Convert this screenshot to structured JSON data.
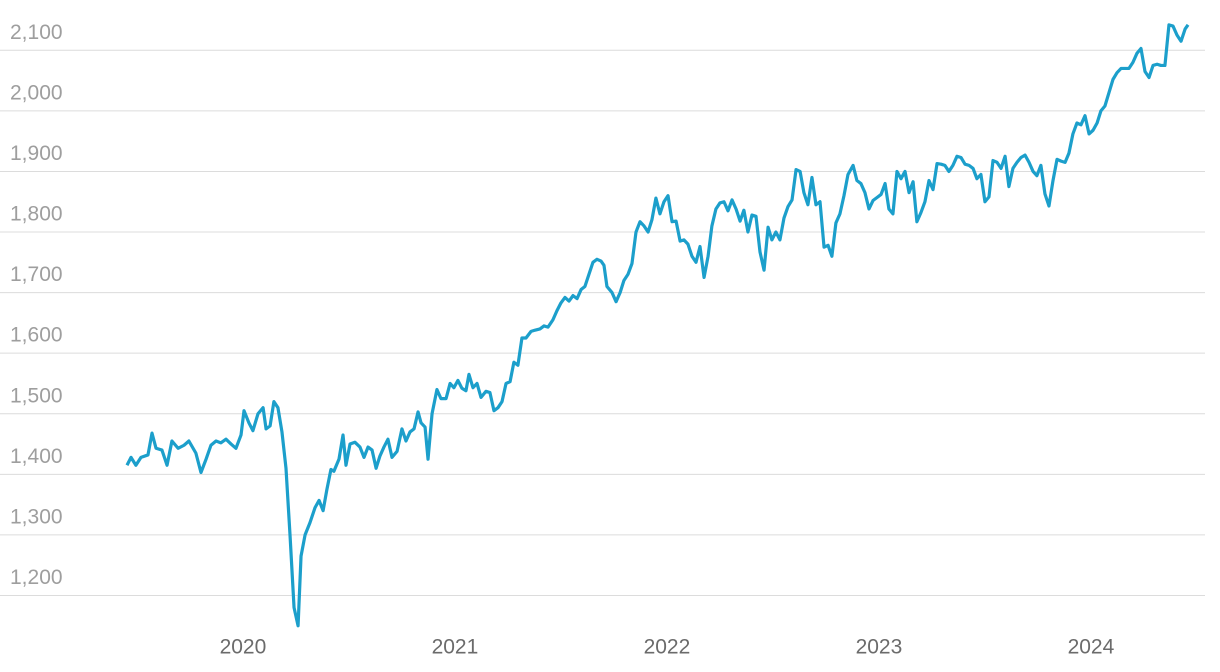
{
  "chart_data": {
    "type": "line",
    "x": [
      2019.453,
      2019.472,
      2019.495,
      2019.519,
      2019.552,
      2019.571,
      2019.59,
      2019.618,
      2019.642,
      2019.665,
      2019.694,
      2019.722,
      2019.745,
      2019.778,
      2019.802,
      2019.826,
      2019.849,
      2019.873,
      2019.896,
      2019.92,
      2019.944,
      2019.967,
      2019.991,
      2020.005,
      2020.028,
      2020.047,
      2020.071,
      2020.095,
      2020.109,
      2020.128,
      2020.146,
      2020.165,
      2020.184,
      2020.203,
      2020.222,
      2020.241,
      2020.26,
      2020.274,
      2020.293,
      2020.316,
      2020.34,
      2020.359,
      2020.378,
      2020.396,
      2020.415,
      2020.429,
      2020.453,
      2020.472,
      2020.486,
      2020.505,
      2020.528,
      2020.552,
      2020.571,
      2020.59,
      2020.609,
      2020.628,
      2020.646,
      2020.665,
      2020.684,
      2020.703,
      2020.727,
      2020.75,
      2020.769,
      2020.788,
      2020.807,
      2020.826,
      2020.84,
      2020.859,
      2020.873,
      2020.892,
      2020.915,
      2020.934,
      2020.958,
      2020.977,
      2020.995,
      2021.014,
      2021.033,
      2021.052,
      2021.066,
      2021.085,
      2021.104,
      2021.123,
      2021.146,
      2021.165,
      2021.184,
      2021.203,
      2021.222,
      2021.241,
      2021.26,
      2021.278,
      2021.297,
      2021.316,
      2021.335,
      2021.359,
      2021.378,
      2021.401,
      2021.42,
      2021.439,
      2021.462,
      2021.481,
      2021.5,
      2021.519,
      2021.538,
      2021.557,
      2021.576,
      2021.595,
      2021.613,
      2021.632,
      2021.651,
      2021.67,
      2021.689,
      2021.703,
      2021.717,
      2021.741,
      2021.76,
      2021.779,
      2021.797,
      2021.816,
      2021.835,
      2021.854,
      2021.873,
      2021.892,
      2021.911,
      2021.929,
      2021.948,
      2021.967,
      2021.986,
      2022.005,
      2022.024,
      2022.043,
      2022.062,
      2022.08,
      2022.099,
      2022.118,
      2022.137,
      2022.156,
      2022.175,
      2022.194,
      2022.212,
      2022.231,
      2022.25,
      2022.269,
      2022.288,
      2022.307,
      2022.326,
      2022.345,
      2022.363,
      2022.382,
      2022.401,
      2022.42,
      2022.439,
      2022.458,
      2022.477,
      2022.495,
      2022.514,
      2022.533,
      2022.552,
      2022.571,
      2022.59,
      2022.609,
      2022.628,
      2022.646,
      2022.665,
      2022.684,
      2022.703,
      2022.722,
      2022.741,
      2022.76,
      2022.778,
      2022.797,
      2022.816,
      2022.835,
      2022.854,
      2022.878,
      2022.896,
      2022.915,
      2022.934,
      2022.953,
      2022.972,
      2022.991,
      2023.01,
      2023.029,
      2023.047,
      2023.066,
      2023.085,
      2023.104,
      2023.123,
      2023.142,
      2023.161,
      2023.179,
      2023.198,
      2023.217,
      2023.236,
      2023.255,
      2023.274,
      2023.293,
      2023.311,
      2023.33,
      2023.349,
      2023.368,
      2023.387,
      2023.406,
      2023.425,
      2023.444,
      2023.462,
      2023.481,
      2023.5,
      2023.519,
      2023.538,
      2023.557,
      2023.576,
      2023.595,
      2023.613,
      2023.632,
      2023.651,
      2023.67,
      2023.689,
      2023.708,
      2023.727,
      2023.745,
      2023.764,
      2023.783,
      2023.802,
      2023.821,
      2023.84,
      2023.859,
      2023.878,
      2023.896,
      2023.915,
      2023.934,
      2023.953,
      2023.972,
      2023.991,
      2024.01,
      2024.029,
      2024.047,
      2024.066,
      2024.085,
      2024.104,
      2024.123,
      2024.142,
      2024.161,
      2024.179,
      2024.198,
      2024.217,
      2024.236,
      2024.255,
      2024.274,
      2024.293,
      2024.312,
      2024.33,
      2024.349,
      2024.368,
      2024.387,
      2024.406,
      2024.425,
      2024.444,
      2024.458
    ],
    "series": [
      {
        "color": "#1c9fcb",
        "values": [
          1415,
          1428,
          1415,
          1428,
          1432,
          1468,
          1443,
          1440,
          1415,
          1455,
          1443,
          1448,
          1455,
          1435,
          1403,
          1425,
          1448,
          1455,
          1452,
          1458,
          1450,
          1443,
          1465,
          1505,
          1485,
          1472,
          1500,
          1510,
          1475,
          1480,
          1520,
          1510,
          1470,
          1410,
          1300,
          1180,
          1150,
          1265,
          1300,
          1320,
          1345,
          1357,
          1340,
          1375,
          1408,
          1405,
          1425,
          1465,
          1415,
          1450,
          1453,
          1445,
          1428,
          1445,
          1440,
          1410,
          1430,
          1445,
          1458,
          1428,
          1438,
          1475,
          1455,
          1470,
          1475,
          1503,
          1485,
          1478,
          1425,
          1500,
          1540,
          1525,
          1525,
          1550,
          1543,
          1555,
          1542,
          1538,
          1565,
          1543,
          1550,
          1527,
          1537,
          1535,
          1505,
          1510,
          1520,
          1550,
          1553,
          1585,
          1580,
          1625,
          1625,
          1636,
          1638,
          1640,
          1645,
          1643,
          1655,
          1670,
          1683,
          1692,
          1686,
          1695,
          1690,
          1705,
          1710,
          1730,
          1750,
          1755,
          1752,
          1745,
          1710,
          1700,
          1685,
          1700,
          1720,
          1730,
          1748,
          1800,
          1817,
          1810,
          1800,
          1820,
          1856,
          1830,
          1850,
          1860,
          1817,
          1818,
          1785,
          1787,
          1780,
          1760,
          1750,
          1776,
          1725,
          1760,
          1810,
          1838,
          1848,
          1850,
          1835,
          1853,
          1838,
          1818,
          1836,
          1800,
          1828,
          1826,
          1767,
          1737,
          1808,
          1787,
          1800,
          1787,
          1823,
          1842,
          1853,
          1903,
          1900,
          1865,
          1845,
          1890,
          1845,
          1850,
          1775,
          1778,
          1760,
          1815,
          1830,
          1860,
          1895,
          1910,
          1885,
          1880,
          1865,
          1838,
          1852,
          1857,
          1862,
          1880,
          1838,
          1830,
          1900,
          1888,
          1900,
          1865,
          1883,
          1817,
          1832,
          1850,
          1885,
          1870,
          1913,
          1912,
          1910,
          1900,
          1910,
          1925,
          1923,
          1912,
          1910,
          1905,
          1888,
          1895,
          1850,
          1858,
          1918,
          1915,
          1905,
          1925,
          1875,
          1905,
          1915,
          1923,
          1927,
          1915,
          1900,
          1893,
          1910,
          1863,
          1843,
          1885,
          1920,
          1917,
          1915,
          1930,
          1962,
          1980,
          1977,
          1992,
          1962,
          1968,
          1980,
          2000,
          2008,
          2030,
          2052,
          2063,
          2070,
          2070,
          2070,
          2080,
          2095,
          2103,
          2065,
          2055,
          2075,
          2077,
          2075,
          2075,
          2142,
          2140,
          2125,
          2115,
          2135,
          2142
        ]
      }
    ],
    "xlim": [
      2018.854,
      2024.538
    ],
    "xticks": [
      2020,
      2021,
      2022,
      2023,
      2024
    ],
    "ylim": [
      1143,
      2150
    ],
    "yticks": [
      {
        "value": 1200,
        "label": "1,200"
      },
      {
        "value": 1300,
        "label": "1,300"
      },
      {
        "value": 1400,
        "label": "1,400"
      },
      {
        "value": 1500,
        "label": "1,500"
      },
      {
        "value": 1600,
        "label": "1,600"
      },
      {
        "value": 1700,
        "label": "1,700"
      },
      {
        "value": 1800,
        "label": "1,800"
      },
      {
        "value": 1900,
        "label": "1,900"
      },
      {
        "value": 2000,
        "label": "2,000"
      },
      {
        "value": 2100,
        "label": "2,100"
      }
    ],
    "grid": true
  }
}
